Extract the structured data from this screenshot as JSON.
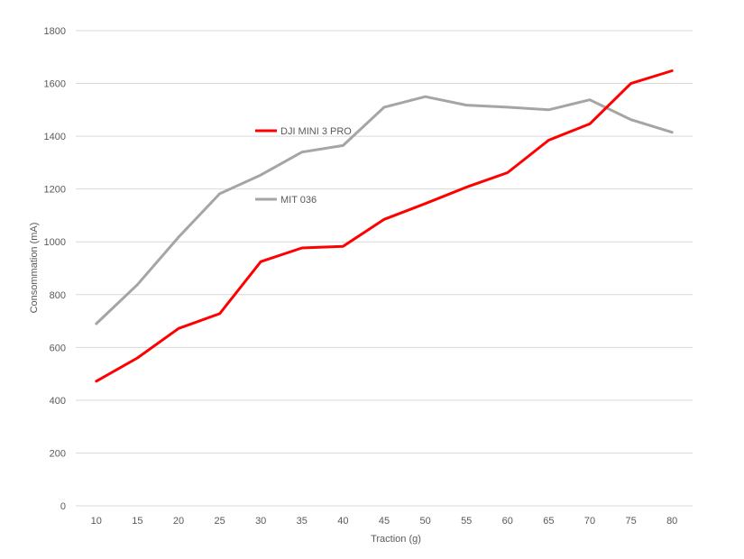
{
  "chart_data": {
    "type": "line",
    "title": "",
    "xlabel": "Traction (g)",
    "ylabel": "Consommation (mA)",
    "x": [
      10,
      15,
      20,
      25,
      30,
      35,
      40,
      45,
      50,
      55,
      60,
      65,
      70,
      75,
      80
    ],
    "x_tick_labels": [
      "10",
      "15",
      "20",
      "25",
      "30",
      "35",
      "40",
      "45",
      "50",
      "55",
      "60",
      "65",
      "70",
      "75",
      "80"
    ],
    "ylim": [
      0,
      1800
    ],
    "y_ticks": [
      0,
      200,
      400,
      600,
      800,
      1000,
      1200,
      1400,
      1600,
      1800
    ],
    "y_tick_labels": [
      "0",
      "200",
      "400",
      "600",
      "800",
      "1000",
      "1200",
      "1400",
      "1600",
      "1800"
    ],
    "grid": true,
    "legend_position": "inside-upper-left",
    "series": [
      {
        "name": "DJI MINI 3 PRO",
        "color": "#ff0000",
        "values": [
          472,
          560,
          672,
          728,
          925,
          977,
          983,
          1085,
          1145,
          1207,
          1262,
          1385,
          1447,
          1600,
          1648
        ]
      },
      {
        "name": "MIT 036",
        "color": "#a5a5a5",
        "values": [
          690,
          838,
          1018,
          1182,
          1253,
          1340,
          1365,
          1510,
          1550,
          1518,
          1510,
          1500,
          1538,
          1463,
          1415
        ]
      }
    ]
  }
}
